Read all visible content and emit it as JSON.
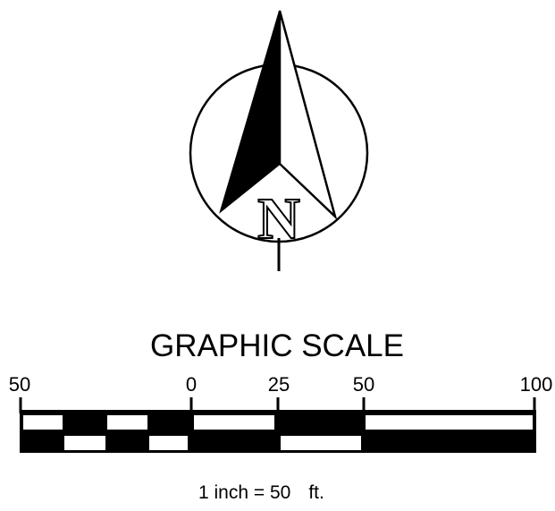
{
  "north_arrow": {
    "letter": "N"
  },
  "graphic_scale": {
    "title": "GRAPHIC SCALE",
    "tick_labels": [
      "50",
      "0",
      "25",
      "50",
      "100"
    ],
    "ratio": {
      "prefix": "1 inch = ",
      "value": "50",
      "unit": "ft."
    }
  },
  "colors": {
    "ink": "#000000",
    "paper": "#ffffff"
  }
}
